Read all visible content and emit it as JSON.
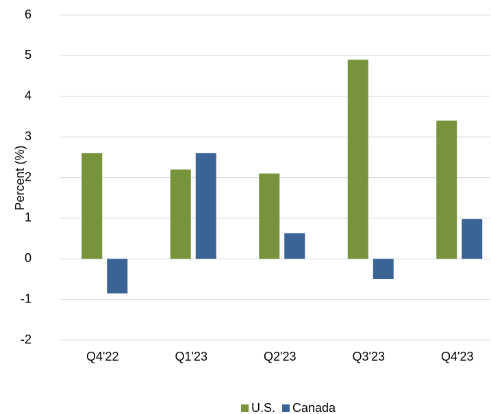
{
  "chart_data": {
    "type": "bar",
    "y_label": "Percent (%)",
    "categories": [
      "Q4'22",
      "Q1'23",
      "Q2'23",
      "Q3'23",
      "Q4'23"
    ],
    "series": [
      {
        "name": "U.S.",
        "color": "#77933c",
        "values": [
          2.6,
          2.2,
          2.1,
          4.9,
          3.4
        ]
      },
      {
        "name": "Canada",
        "color": "#3b6496",
        "values": [
          -0.85,
          2.6,
          0.63,
          -0.5,
          0.98
        ]
      }
    ],
    "ylim": [
      -2,
      6
    ],
    "yticks": [
      -2,
      -1,
      0,
      1,
      2,
      3,
      4,
      5,
      6
    ],
    "grid": true,
    "legend": "bottom"
  }
}
